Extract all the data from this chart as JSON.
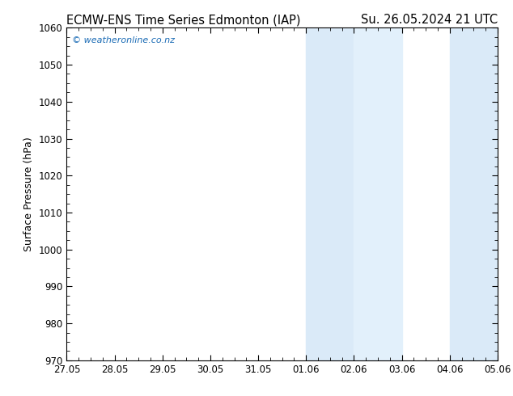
{
  "title_left": "ECMW-ENS Time Series Edmonton (IAP)",
  "title_right": "Su. 26.05.2024 21 UTC",
  "ylabel": "Surface Pressure (hPa)",
  "watermark": "© weatheronline.co.nz",
  "ylim": [
    970,
    1060
  ],
  "yticks": [
    970,
    980,
    990,
    1000,
    1010,
    1020,
    1030,
    1040,
    1050,
    1060
  ],
  "xtick_labels": [
    "27.05",
    "28.05",
    "29.05",
    "30.05",
    "31.05",
    "01.06",
    "02.06",
    "03.06",
    "04.06",
    "05.06"
  ],
  "xtick_positions": [
    0,
    1,
    2,
    3,
    4,
    5,
    6,
    7,
    8,
    9
  ],
  "shaded_regions": [
    {
      "xstart": 5.0,
      "xend": 6.0
    },
    {
      "xstart": 6.0,
      "xend": 7.0
    },
    {
      "xstart": 8.0,
      "xend": 9.0
    }
  ],
  "shade_color": "#daeaf8",
  "shade_color_alt": "#e2f0fb",
  "bg_color": "#ffffff",
  "plot_bg_color": "#ffffff",
  "title_fontsize": 10.5,
  "watermark_color": "#1a6bb5",
  "tick_color": "#000000",
  "axis_label_fontsize": 9,
  "tick_fontsize": 8.5
}
